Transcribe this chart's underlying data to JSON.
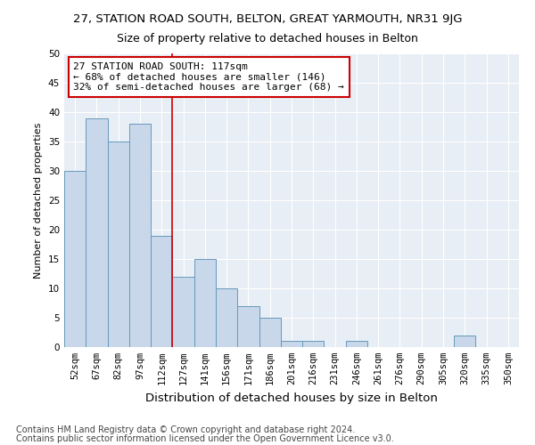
{
  "title1": "27, STATION ROAD SOUTH, BELTON, GREAT YARMOUTH, NR31 9JG",
  "title2": "Size of property relative to detached houses in Belton",
  "xlabel": "Distribution of detached houses by size in Belton",
  "ylabel": "Number of detached properties",
  "categories": [
    "52sqm",
    "67sqm",
    "82sqm",
    "97sqm",
    "112sqm",
    "127sqm",
    "141sqm",
    "156sqm",
    "171sqm",
    "186sqm",
    "201sqm",
    "216sqm",
    "231sqm",
    "246sqm",
    "261sqm",
    "276sqm",
    "290sqm",
    "305sqm",
    "320sqm",
    "335sqm",
    "350sqm"
  ],
  "values": [
    30,
    39,
    35,
    38,
    19,
    12,
    15,
    10,
    7,
    5,
    1,
    1,
    0,
    1,
    0,
    0,
    0,
    0,
    2,
    0,
    0
  ],
  "bar_color": "#c8d8ea",
  "bar_edge_color": "#6699bb",
  "vline_x_idx": 4.5,
  "vline_color": "#cc0000",
  "annotation_line1": "27 STATION ROAD SOUTH: 117sqm",
  "annotation_line2": "← 68% of detached houses are smaller (146)",
  "annotation_line3": "32% of semi-detached houses are larger (68) →",
  "annotation_box_color": "white",
  "annotation_box_edge_color": "#cc0000",
  "ylim": [
    0,
    50
  ],
  "yticks": [
    0,
    5,
    10,
    15,
    20,
    25,
    30,
    35,
    40,
    45,
    50
  ],
  "footer1": "Contains HM Land Registry data © Crown copyright and database right 2024.",
  "footer2": "Contains public sector information licensed under the Open Government Licence v3.0.",
  "plot_bg_color": "#e8eef5",
  "fig_bg_color": "#ffffff",
  "grid_color": "#ffffff",
  "title1_fontsize": 9.5,
  "title2_fontsize": 9,
  "xlabel_fontsize": 9.5,
  "ylabel_fontsize": 8,
  "tick_fontsize": 7.5,
  "annotation_fontsize": 8,
  "footer_fontsize": 7
}
